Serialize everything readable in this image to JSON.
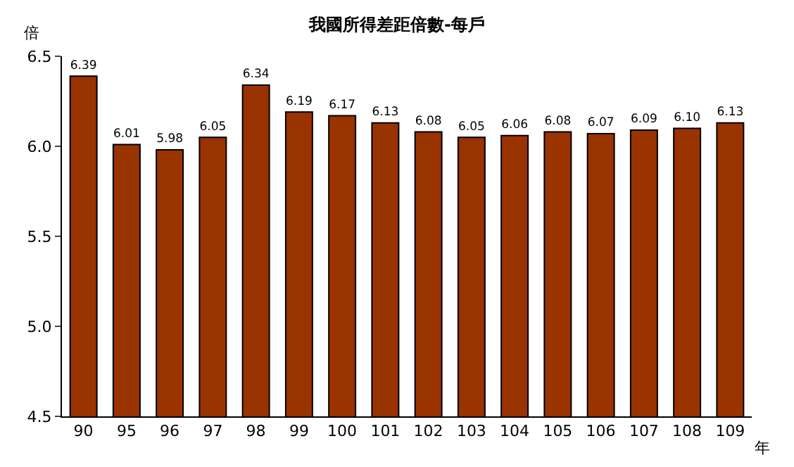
{
  "chart_data": {
    "type": "bar",
    "title": "我國所得差距倍數-每戶",
    "ylabel": "倍",
    "xlabel": "年",
    "categories": [
      "90",
      "95",
      "96",
      "97",
      "98",
      "99",
      "100",
      "101",
      "102",
      "103",
      "104",
      "105",
      "106",
      "107",
      "108",
      "109"
    ],
    "values": [
      6.39,
      6.01,
      5.98,
      6.05,
      6.34,
      6.19,
      6.17,
      6.13,
      6.08,
      6.05,
      6.06,
      6.08,
      6.07,
      6.09,
      6.1,
      6.13
    ],
    "color": "#993300",
    "ylim": [
      4.5,
      6.5
    ],
    "yticks": [
      4.5,
      {
        "value": 5,
        "label": "5.0"
      },
      5.5,
      {
        "value": 6,
        "label": "6.0"
      },
      6.5
    ],
    "value_labels": [
      "6.39",
      "6.01",
      "5.98",
      "6.05",
      "6.34",
      "6.19",
      "6.17",
      "6.13",
      "6.08",
      "6.05",
      "6.06",
      "6.08",
      "6.07",
      "6.09",
      "6.10",
      "6.13"
    ]
  }
}
